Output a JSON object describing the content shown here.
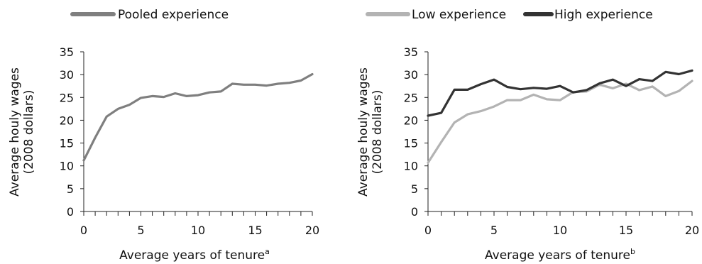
{
  "chart_data": [
    {
      "type": "line",
      "xlabel": "Average years of tenure",
      "xlabel_sup": "a",
      "ylabel": [
        "Average houly wages",
        "(2008 dollars)"
      ],
      "ylim": [
        0,
        35
      ],
      "xlim": [
        0,
        20
      ],
      "yticks": [
        0,
        5,
        10,
        15,
        20,
        25,
        30,
        35
      ],
      "xticks": [
        0,
        5,
        10,
        15,
        20
      ],
      "legend_position": "top",
      "grid": false,
      "x": [
        0,
        1,
        2,
        3,
        4,
        5,
        6,
        7,
        8,
        9,
        10,
        11,
        12,
        13,
        14,
        15,
        16,
        17,
        18,
        19,
        20
      ],
      "series": [
        {
          "name": "Pooled experience",
          "color": "#7f7f7f",
          "values": [
            11.2,
            16.2,
            20.8,
            22.5,
            23.4,
            24.9,
            25.3,
            25.1,
            25.9,
            25.3,
            25.5,
            26.1,
            26.3,
            28.0,
            27.8,
            27.8,
            27.6,
            28.0,
            28.2,
            28.7,
            30.1
          ]
        }
      ]
    },
    {
      "type": "line",
      "xlabel": "Average years of tenure",
      "xlabel_sup": "b",
      "ylabel": [
        "Average houly wages",
        "(2008 dollars)"
      ],
      "ylim": [
        0,
        35
      ],
      "xlim": [
        0,
        20
      ],
      "yticks": [
        0,
        5,
        10,
        15,
        20,
        25,
        30,
        35
      ],
      "xticks": [
        0,
        5,
        10,
        15,
        20
      ],
      "legend_position": "top",
      "grid": false,
      "x": [
        0,
        1,
        2,
        3,
        4,
        5,
        6,
        7,
        8,
        9,
        10,
        11,
        12,
        13,
        14,
        15,
        16,
        17,
        18,
        19,
        20
      ],
      "series": [
        {
          "name": "Low experience",
          "color": "#b3b3b3",
          "values": [
            10.7,
            15.2,
            19.5,
            21.3,
            22.0,
            23.0,
            24.4,
            24.4,
            25.6,
            24.6,
            24.4,
            26.2,
            26.3,
            27.8,
            27.0,
            28.0,
            26.6,
            27.4,
            25.3,
            26.4,
            28.6
          ]
        },
        {
          "name": "High experience",
          "color": "#333333",
          "values": [
            21.0,
            21.6,
            26.7,
            26.7,
            27.9,
            28.9,
            27.3,
            26.8,
            27.1,
            26.9,
            27.5,
            26.1,
            26.6,
            28.1,
            28.9,
            27.5,
            29.0,
            28.6,
            30.6,
            30.1,
            30.9
          ]
        }
      ]
    }
  ]
}
